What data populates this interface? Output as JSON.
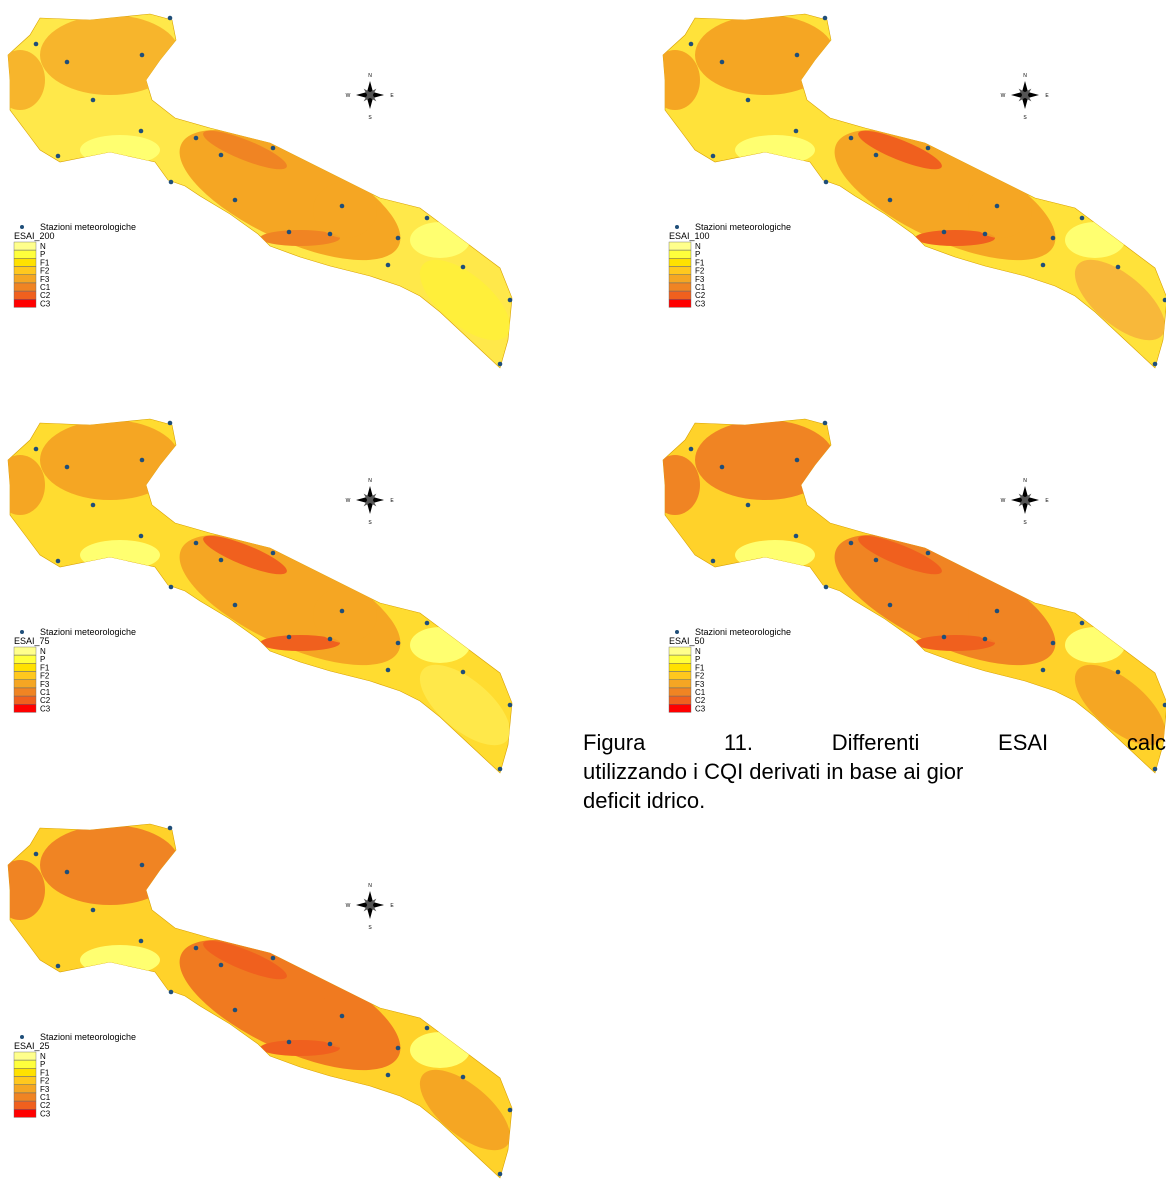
{
  "maps": [
    {
      "legend_title": "ESAI_200"
    },
    {
      "legend_title": "ESAI_100"
    },
    {
      "legend_title": "ESAI_75"
    },
    {
      "legend_title": "ESAI_50"
    },
    {
      "legend_title": "ESAI_25"
    }
  ],
  "legend": {
    "stations": "Stazioni meteorologiche",
    "classes": [
      "N",
      "P",
      "F1",
      "F2",
      "F3",
      "C1",
      "C2",
      "C3"
    ],
    "colors": [
      "#ffff8c",
      "#ffff3c",
      "#ffe100",
      "#ffc81e",
      "#f5a623",
      "#f08423",
      "#f0601e",
      "#ff0000"
    ]
  },
  "compass": {
    "north": "N",
    "west": "W",
    "east": "E",
    "south": "S"
  },
  "caption": {
    "lines": [
      "Figura 11. Differenti ESAI calc",
      "utilizzando i CQI derivati in base ai gior",
      "deficit idrico."
    ]
  }
}
